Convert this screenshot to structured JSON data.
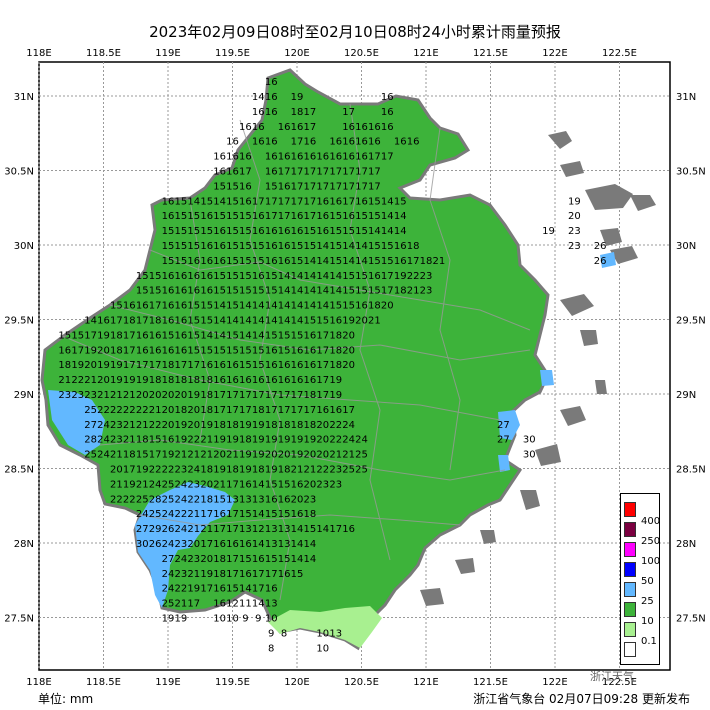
{
  "title": "2023年02月09日08时至02月10日08时24小时累计雨量预报",
  "unit_label": "单位: mm",
  "source_label": "浙江省气象台 02月07日09:28 更新发布",
  "watermark": "浙江天气",
  "x_ticks": [
    "118E",
    "118.5E",
    "119E",
    "119.5E",
    "120E",
    "120.5E",
    "121E",
    "121.5E",
    "122E",
    "122.5E"
  ],
  "y_ticks": [
    "31N",
    "30.5N",
    "30N",
    "29.5N",
    "29N",
    "28.5N",
    "28N",
    "27.5N"
  ],
  "legend": [
    {
      "label": "400",
      "color": "#ff0000"
    },
    {
      "label": "250",
      "color": "#7b0040"
    },
    {
      "label": "100",
      "color": "#ff00ff"
    },
    {
      "label": "50",
      "color": "#0000ff"
    },
    {
      "label": "25",
      "color": "#62b8ff"
    },
    {
      "label": "10",
      "color": "#3db33a"
    },
    {
      "label": "0.1",
      "color": "#a8f090"
    },
    {
      "label": "",
      "color": "#ffffff"
    }
  ],
  "colors": {
    "land_gray": "#7a7a7a",
    "rain_10_25": "#3db33a",
    "rain_25_50": "#62b8ff",
    "rain_01_10": "#a8f090",
    "border": "#9a9a9a"
  },
  "grid_values": [
    {
      "lon": 119.8,
      "lat": 31.1,
      "v": "16"
    },
    {
      "lon": 119.7,
      "lat": 31.0,
      "v": "14"
    },
    {
      "lon": 119.8,
      "lat": 31.0,
      "v": "16"
    },
    {
      "lon": 120.0,
      "lat": 31.0,
      "v": "19"
    },
    {
      "lon": 120.7,
      "lat": 31.0,
      "v": "16"
    },
    {
      "lon": 119.7,
      "lat": 30.9,
      "v": "16"
    },
    {
      "lon": 119.8,
      "lat": 30.9,
      "v": "16"
    },
    {
      "lon": 120.0,
      "lat": 30.9,
      "v": "18"
    },
    {
      "lon": 120.1,
      "lat": 30.9,
      "v": "17"
    },
    {
      "lon": 120.4,
      "lat": 30.9,
      "v": "17"
    },
    {
      "lon": 120.7,
      "lat": 30.9,
      "v": "16"
    },
    {
      "lon": 119.6,
      "lat": 30.8,
      "v": "16"
    },
    {
      "lon": 119.7,
      "lat": 30.8,
      "v": "16"
    },
    {
      "lon": 119.9,
      "lat": 30.8,
      "v": "16"
    },
    {
      "lon": 120.0,
      "lat": 30.8,
      "v": "16"
    },
    {
      "lon": 120.1,
      "lat": 30.8,
      "v": "17"
    },
    {
      "lon": 120.4,
      "lat": 30.8,
      "v": "16"
    },
    {
      "lon": 120.5,
      "lat": 30.8,
      "v": "16"
    },
    {
      "lon": 120.6,
      "lat": 30.8,
      "v": "16"
    },
    {
      "lon": 120.7,
      "lat": 30.8,
      "v": "16"
    },
    {
      "lon": 119.5,
      "lat": 30.7,
      "v": "16"
    },
    {
      "lon": 119.7,
      "lat": 30.7,
      "v": "16"
    },
    {
      "lon": 119.8,
      "lat": 30.7,
      "v": "16"
    },
    {
      "lon": 120.0,
      "lat": 30.7,
      "v": "17"
    },
    {
      "lon": 120.1,
      "lat": 30.7,
      "v": "16"
    },
    {
      "lon": 120.3,
      "lat": 30.7,
      "v": "16"
    },
    {
      "lon": 120.4,
      "lat": 30.7,
      "v": "16"
    },
    {
      "lon": 120.5,
      "lat": 30.7,
      "v": "16"
    },
    {
      "lon": 120.6,
      "lat": 30.7,
      "v": "16"
    },
    {
      "lon": 120.8,
      "lat": 30.7,
      "v": "16"
    },
    {
      "lon": 120.9,
      "lat": 30.7,
      "v": "16"
    },
    {
      "lon": 119.4,
      "lat": 30.6,
      "v": "16"
    },
    {
      "lon": 119.5,
      "lat": 30.6,
      "v": "16"
    },
    {
      "lon": 119.6,
      "lat": 30.6,
      "v": "16"
    },
    {
      "lon": 119.8,
      "lat": 30.6,
      "v": "16"
    },
    {
      "lon": 119.9,
      "lat": 30.6,
      "v": "16"
    },
    {
      "lon": 120.0,
      "lat": 30.6,
      "v": "16"
    },
    {
      "lon": 120.1,
      "lat": 30.6,
      "v": "16"
    },
    {
      "lon": 120.2,
      "lat": 30.6,
      "v": "16"
    },
    {
      "lon": 120.3,
      "lat": 30.6,
      "v": "16"
    },
    {
      "lon": 120.4,
      "lat": 30.6,
      "v": "16"
    },
    {
      "lon": 120.5,
      "lat": 30.6,
      "v": "16"
    },
    {
      "lon": 120.6,
      "lat": 30.6,
      "v": "17"
    },
    {
      "lon": 120.7,
      "lat": 30.6,
      "v": "17"
    },
    {
      "lon": 119.4,
      "lat": 30.5,
      "v": "16"
    },
    {
      "lon": 119.5,
      "lat": 30.5,
      "v": "16"
    },
    {
      "lon": 119.6,
      "lat": 30.5,
      "v": "17"
    },
    {
      "lon": 119.8,
      "lat": 30.5,
      "v": "16"
    },
    {
      "lon": 119.9,
      "lat": 30.5,
      "v": "17"
    },
    {
      "lon": 120.0,
      "lat": 30.5,
      "v": "17"
    },
    {
      "lon": 120.1,
      "lat": 30.5,
      "v": "17"
    },
    {
      "lon": 120.2,
      "lat": 30.5,
      "v": "17"
    },
    {
      "lon": 120.3,
      "lat": 30.5,
      "v": "17"
    },
    {
      "lon": 120.4,
      "lat": 30.5,
      "v": "17"
    },
    {
      "lon": 120.5,
      "lat": 30.5,
      "v": "17"
    },
    {
      "lon": 120.6,
      "lat": 30.5,
      "v": "17"
    },
    {
      "lon": 119.4,
      "lat": 30.4,
      "v": "15"
    },
    {
      "lon": 119.5,
      "lat": 30.4,
      "v": "15"
    },
    {
      "lon": 119.6,
      "lat": 30.4,
      "v": "16"
    },
    {
      "lon": 119.8,
      "lat": 30.4,
      "v": "15"
    },
    {
      "lon": 119.9,
      "lat": 30.4,
      "v": "16"
    },
    {
      "lon": 120.0,
      "lat": 30.4,
      "v": "17"
    },
    {
      "lon": 120.1,
      "lat": 30.4,
      "v": "17"
    },
    {
      "lon": 120.2,
      "lat": 30.4,
      "v": "17"
    },
    {
      "lon": 120.3,
      "lat": 30.4,
      "v": "17"
    },
    {
      "lon": 120.4,
      "lat": 30.4,
      "v": "17"
    },
    {
      "lon": 120.5,
      "lat": 30.4,
      "v": "17"
    },
    {
      "lon": 120.6,
      "lat": 30.4,
      "v": "17"
    }
  ],
  "rows_text": [
    {
      "lat": 30.3,
      "lon0": 119.0,
      "values": [
        "16",
        "15",
        "14",
        "15",
        "14",
        "15",
        "16",
        "17",
        "17",
        "17",
        "17",
        "17",
        "16",
        "16",
        "17",
        "16",
        "15",
        "14",
        "15"
      ],
      "east": [
        {
          "lon": 122.15,
          "v": "19"
        }
      ]
    },
    {
      "lat": 30.2,
      "lon0": 119.0,
      "values": [
        "16",
        "15",
        "15",
        "16",
        "15",
        "15",
        "15",
        "16",
        "17",
        "17",
        "16",
        "17",
        "16",
        "15",
        "16",
        "15",
        "15",
        "14",
        "14"
      ],
      "east": [
        {
          "lon": 122.15,
          "v": "20"
        }
      ]
    },
    {
      "lat": 30.1,
      "lon0": 119.0,
      "values": [
        "15",
        "15",
        "15",
        "15",
        "16",
        "15",
        "15",
        "16",
        "16",
        "16",
        "16",
        "15",
        "16",
        "15",
        "15",
        "15",
        "14",
        "14",
        "14"
      ],
      "east": [
        {
          "lon": 121.95,
          "v": "19"
        },
        {
          "lon": 122.15,
          "v": "23"
        }
      ]
    },
    {
      "lat": 30.0,
      "lon0": 119.0,
      "values": [
        "15",
        "15",
        "15",
        "16",
        "16",
        "15",
        "15",
        "15",
        "16",
        "16",
        "15",
        "15",
        "14",
        "15",
        "14",
        "14",
        "15",
        "15",
        "16",
        "18"
      ],
      "east": [
        {
          "lon": 122.15,
          "v": "23"
        },
        {
          "lon": 122.35,
          "v": "26"
        }
      ]
    },
    {
      "lat": 29.9,
      "lon0": 119.0,
      "values": [
        "15",
        "15",
        "16",
        "16",
        "16",
        "15",
        "15",
        "15",
        "16",
        "16",
        "15",
        "14",
        "14",
        "15",
        "14",
        "14",
        "15",
        "15",
        "16",
        "17",
        "18",
        "21"
      ],
      "east": [
        {
          "lon": 122.35,
          "v": "26"
        }
      ]
    },
    {
      "lat": 29.8,
      "lon0": 118.8,
      "values": [
        "15",
        "15",
        "16",
        "16",
        "16",
        "16",
        "15",
        "15",
        "15",
        "16",
        "15",
        "14",
        "14",
        "14",
        "14",
        "14",
        "15",
        "15",
        "16",
        "17",
        "19",
        "22",
        "23"
      ],
      "east": []
    },
    {
      "lat": 29.7,
      "lon0": 118.8,
      "values": [
        "15",
        "15",
        "16",
        "16",
        "16",
        "16",
        "15",
        "15",
        "15",
        "15",
        "15",
        "14",
        "14",
        "14",
        "14",
        "14",
        "15",
        "15",
        "15",
        "17",
        "18",
        "21",
        "23"
      ],
      "east": []
    },
    {
      "lat": 29.6,
      "lon0": 118.6,
      "values": [
        "15",
        "16",
        "16",
        "17",
        "16",
        "16",
        "15",
        "15",
        "14",
        "15",
        "14",
        "14",
        "14",
        "14",
        "14",
        "14",
        "14",
        "15",
        "15",
        "16",
        "18",
        "20"
      ],
      "east": []
    },
    {
      "lat": 29.5,
      "lon0": 118.4,
      "values": [
        "14",
        "16",
        "17",
        "18",
        "17",
        "18",
        "16",
        "16",
        "15",
        "15",
        "14",
        "14",
        "14",
        "14",
        "14",
        "14",
        "14",
        "15",
        "15",
        "16",
        "19",
        "20",
        "21"
      ],
      "east": []
    },
    {
      "lat": 29.4,
      "lon0": 118.2,
      "values": [
        "15",
        "15",
        "17",
        "19",
        "18",
        "17",
        "16",
        "16",
        "15",
        "16",
        "15",
        "14",
        "14",
        "15",
        "14",
        "14",
        "15",
        "15",
        "15",
        "16",
        "17",
        "18",
        "20"
      ],
      "east": []
    },
    {
      "lat": 29.3,
      "lon0": 118.2,
      "values": [
        "16",
        "17",
        "19",
        "20",
        "18",
        "17",
        "16",
        "16",
        "16",
        "16",
        "15",
        "15",
        "15",
        "15",
        "15",
        "15",
        "16",
        "15",
        "16",
        "16",
        "17",
        "18",
        "20"
      ],
      "east": []
    },
    {
      "lat": 29.2,
      "lon0": 118.2,
      "values": [
        "18",
        "19",
        "20",
        "19",
        "19",
        "17",
        "17",
        "17",
        "18",
        "17",
        "17",
        "16",
        "16",
        "16",
        "15",
        "15",
        "16",
        "16",
        "16",
        "16",
        "17",
        "18",
        "20"
      ],
      "east": []
    },
    {
      "lat": 29.1,
      "lon0": 118.2,
      "values": [
        "21",
        "22",
        "21",
        "20",
        "19",
        "19",
        "19",
        "18",
        "18",
        "18",
        "18",
        "18",
        "16",
        "16",
        "16",
        "16",
        "16",
        "16",
        "16",
        "16",
        "17",
        "19"
      ],
      "east": []
    },
    {
      "lat": 29.0,
      "lon0": 118.2,
      "values": [
        "23",
        "23",
        "23",
        "21",
        "21",
        "21",
        "20",
        "20",
        "20",
        "20",
        "19",
        "18",
        "17",
        "17",
        "17",
        "17",
        "17",
        "17",
        "17",
        "18",
        "17",
        "19"
      ],
      "east": []
    }
  ],
  "rows_south": [
    {
      "lat": 28.9,
      "lon0": 118.4,
      "values": [
        "25",
        "22",
        "22",
        "22",
        "22",
        "21",
        "20",
        "18",
        "20",
        "18",
        "17",
        "17",
        "17",
        "18",
        "17",
        "17",
        "17",
        "17",
        "16",
        "16",
        "17"
      ],
      "east": []
    },
    {
      "lat": 28.8,
      "lon0": 118.4,
      "values": [
        "27",
        "24",
        "23",
        "21",
        "21",
        "22",
        "20",
        "19",
        "20",
        "19",
        "18",
        "18",
        "19",
        "19",
        "18",
        "18",
        "18",
        "18",
        "20",
        "22",
        "24"
      ],
      "east": [
        {
          "lon": 121.6,
          "v": "27"
        }
      ]
    },
    {
      "lat": 28.7,
      "lon0": 118.4,
      "values": [
        "28",
        "24",
        "23",
        "21",
        "18",
        "15",
        "16",
        "19",
        "22",
        "21",
        "19",
        "19",
        "18",
        "19",
        "19",
        "19",
        "19",
        "19",
        "20",
        "22",
        "24",
        "24"
      ],
      "east": [
        {
          "lon": 121.6,
          "v": "27"
        },
        {
          "lon": 121.8,
          "v": "30"
        }
      ]
    },
    {
      "lat": 28.6,
      "lon0": 118.4,
      "values": [
        "25",
        "24",
        "21",
        "18",
        "15",
        "17",
        "19",
        "21",
        "21",
        "21",
        "20",
        "21",
        "19",
        "19",
        "20",
        "20",
        "19",
        "20",
        "20",
        "21",
        "21",
        "25"
      ],
      "east": [
        {
          "lon": 121.8,
          "v": "30"
        }
      ]
    },
    {
      "lat": 28.5,
      "lon0": 118.6,
      "values": [
        "20",
        "17",
        "19",
        "22",
        "22",
        "23",
        "24",
        "18",
        "19",
        "18",
        "19",
        "18",
        "19",
        "18",
        "21",
        "21",
        "22",
        "23",
        "25",
        "25"
      ],
      "east": []
    },
    {
      "lat": 28.4,
      "lon0": 118.6,
      "values": [
        "21",
        "19",
        "21",
        "24",
        "25",
        "24",
        "23",
        "20",
        "21",
        "17",
        "16",
        "14",
        "15",
        "15",
        "16",
        "20",
        "23",
        "23"
      ],
      "east": []
    },
    {
      "lat": 28.3,
      "lon0": 118.6,
      "values": [
        "22",
        "22",
        "25",
        "28",
        "25",
        "24",
        "22",
        "18",
        "15",
        "13",
        "13",
        "13",
        "16",
        "16",
        "20",
        "23"
      ],
      "east": []
    },
    {
      "lat": 28.2,
      "lon0": 118.8,
      "values": [
        "24",
        "25",
        "24",
        "22",
        "21",
        "17",
        "16",
        "17",
        "15",
        "14",
        "15",
        "15",
        "16",
        "18"
      ],
      "east": []
    },
    {
      "lat": 28.1,
      "lon0": 118.8,
      "values": [
        "27",
        "29",
        "26",
        "24",
        "21",
        "21",
        "17",
        "17",
        "13",
        "12",
        "13",
        "13",
        "14",
        "15",
        "14",
        "17",
        "16"
      ],
      "east": []
    },
    {
      "lat": 28.0,
      "lon0": 118.8,
      "values": [
        "30",
        "26",
        "24",
        "23",
        "20",
        "17",
        "16",
        "16",
        "16",
        "14",
        "13",
        "13",
        "14",
        "14"
      ],
      "east": []
    },
    {
      "lat": 27.9,
      "lon0": 119.0,
      "values": [
        "27",
        "24",
        "23",
        "20",
        "18",
        "17",
        "15",
        "16",
        "15",
        "15",
        "14",
        "14"
      ],
      "east": []
    },
    {
      "lat": 27.8,
      "lon0": 119.0,
      "values": [
        "24",
        "23",
        "21",
        "19",
        "18",
        "17",
        "16",
        "17",
        "17",
        "16",
        "15"
      ],
      "east": []
    },
    {
      "lat": 27.7,
      "lon0": 119.0,
      "values": [
        "24",
        "22",
        "19",
        "17",
        "16",
        "15",
        "14",
        "17",
        "16"
      ],
      "east": []
    },
    {
      "lat": 27.6,
      "lon0": 119.0,
      "values": [
        "25",
        "21",
        "17",
        "",
        "16",
        "12",
        "11",
        "14",
        "13"
      ],
      "east": []
    },
    {
      "lat": 27.5,
      "lon0": 119.0,
      "values": [
        "19",
        "19",
        "",
        "",
        "10",
        "10",
        "9",
        "9",
        "10"
      ],
      "east": []
    },
    {
      "lat": 27.4,
      "lon0": 119.8,
      "values": [
        "9",
        "8",
        "",
        "",
        "10",
        "13"
      ],
      "east": []
    },
    {
      "lat": 27.3,
      "lon0": 119.8,
      "values": [
        "8",
        "",
        "",
        "",
        "10"
      ],
      "east": []
    }
  ]
}
